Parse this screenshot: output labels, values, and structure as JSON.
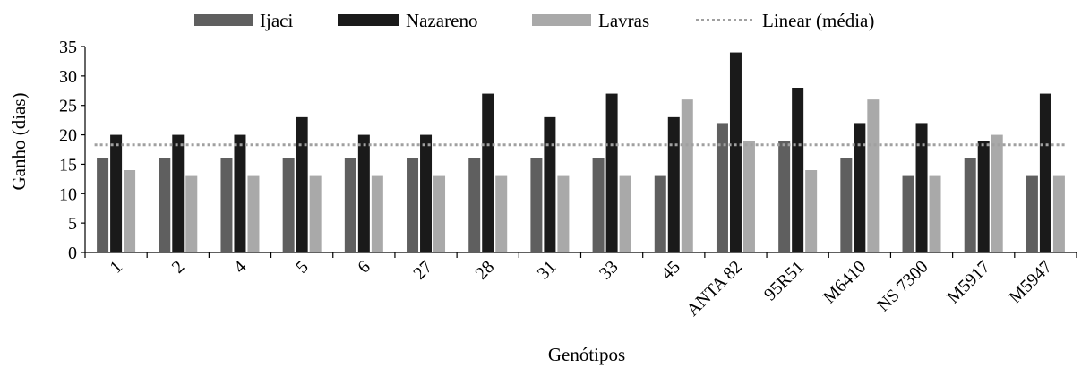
{
  "chart_data": {
    "type": "bar",
    "xlabel": "Genótipos",
    "ylabel": "Ganho (dias)",
    "ylim": [
      0,
      35
    ],
    "yticks": [
      "0",
      "5",
      "10",
      "15",
      "20",
      "25",
      "30",
      "35"
    ],
    "grid": false,
    "legend_position": "top",
    "categories": [
      "1",
      "2",
      "4",
      "5",
      "6",
      "27",
      "28",
      "31",
      "33",
      "45",
      "ANTA 82",
      "95R51",
      "M6410",
      "NS 7300",
      "M5917",
      "M5947"
    ],
    "series": [
      {
        "name": "Ijaci",
        "color": "#5f5f5f",
        "values": [
          16,
          16,
          16,
          16,
          16,
          16,
          16,
          16,
          16,
          13,
          22,
          19,
          16,
          13,
          16,
          13
        ]
      },
      {
        "name": "Nazareno",
        "color": "#1a1a1a",
        "values": [
          20,
          20,
          20,
          23,
          20,
          20,
          27,
          23,
          27,
          23,
          34,
          28,
          22,
          22,
          19,
          27
        ]
      },
      {
        "name": "Lavras",
        "color": "#a9a9a9",
        "values": [
          14,
          13,
          13,
          13,
          13,
          13,
          13,
          13,
          13,
          26,
          19,
          14,
          26,
          13,
          20,
          13
        ]
      }
    ],
    "trendline": {
      "name": "Linear (média)",
      "color": "#a0a0a0",
      "value": 18.3
    }
  }
}
